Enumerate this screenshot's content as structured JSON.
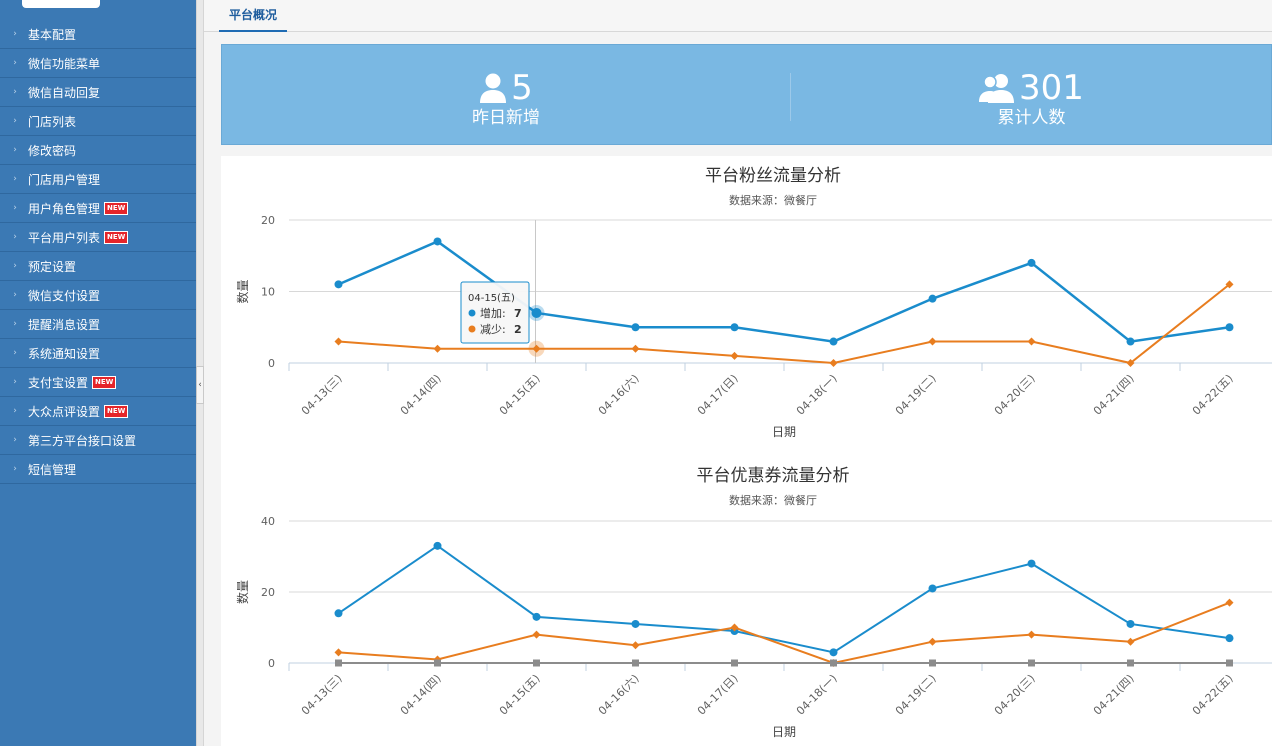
{
  "sidebar": {
    "items": [
      {
        "label": "基本配置",
        "badge": ""
      },
      {
        "label": "微信功能菜单",
        "badge": ""
      },
      {
        "label": "微信自动回复",
        "badge": ""
      },
      {
        "label": "门店列表",
        "badge": ""
      },
      {
        "label": "修改密码",
        "badge": ""
      },
      {
        "label": "门店用户管理",
        "badge": ""
      },
      {
        "label": "用户角色管理",
        "badge": "NEW"
      },
      {
        "label": "平台用户列表",
        "badge": "NEW"
      },
      {
        "label": "预定设置",
        "badge": ""
      },
      {
        "label": "微信支付设置",
        "badge": ""
      },
      {
        "label": "提醒消息设置",
        "badge": ""
      },
      {
        "label": "系统通知设置",
        "badge": ""
      },
      {
        "label": "支付宝设置",
        "badge": "NEW"
      },
      {
        "label": "大众点评设置",
        "badge": "NEW"
      },
      {
        "label": "第三方平台接口设置",
        "badge": ""
      },
      {
        "label": "短信管理",
        "badge": ""
      }
    ]
  },
  "tabs": {
    "overview": "平台概况"
  },
  "stats": {
    "new_yesterday": {
      "value": "5",
      "label": "昨日新增",
      "icon": "user-icon"
    },
    "total": {
      "value": "301",
      "label": "累计人数",
      "icon": "users-icon"
    }
  },
  "colors": {
    "increase": "#1a8ccc",
    "decrease": "#e87d1f",
    "zero": "#8c8c8c",
    "stats_bg": "#7ab8e3",
    "sidebar_bg": "#3b79b4"
  },
  "tooltip": {
    "title": "04-15(五)",
    "rows": [
      {
        "label": "增加",
        "value": "7"
      },
      {
        "label": "减少",
        "value": "2"
      }
    ]
  },
  "chart_data": [
    {
      "type": "line",
      "title": "平台粉丝流量分析",
      "subtitle": "数据来源：微餐厅",
      "xlabel": "日期",
      "ylabel": "数量",
      "ylim": [
        0,
        20
      ],
      "yticks": [
        0,
        10,
        20
      ],
      "categories": [
        "04-13(三)",
        "04-14(四)",
        "04-15(五)",
        "04-16(六)",
        "04-17(日)",
        "04-18(一)",
        "04-19(二)",
        "04-20(三)",
        "04-21(四)",
        "04-22(五)"
      ],
      "series": [
        {
          "name": "增加",
          "values": [
            11,
            17,
            7,
            5,
            5,
            3,
            9,
            14,
            3,
            5
          ]
        },
        {
          "name": "减少",
          "values": [
            3,
            2,
            2,
            2,
            1,
            0,
            3,
            3,
            0,
            11
          ]
        }
      ],
      "grid": true
    },
    {
      "type": "line",
      "title": "平台优惠券流量分析",
      "subtitle": "数据来源：微餐厅",
      "xlabel": "日期",
      "ylabel": "数量",
      "ylim": [
        0,
        40
      ],
      "yticks": [
        0,
        20,
        40
      ],
      "categories": [
        "04-13(三)",
        "04-14(四)",
        "04-15(五)",
        "04-16(六)",
        "04-17(日)",
        "04-18(一)",
        "04-19(二)",
        "04-20(三)",
        "04-21(四)",
        "04-22(五)"
      ],
      "series": [
        {
          "values": [
            14,
            33,
            13,
            11,
            9,
            3,
            21,
            28,
            11,
            7
          ]
        },
        {
          "values": [
            3,
            1,
            8,
            5,
            10,
            0,
            6,
            8,
            6,
            17
          ]
        },
        {
          "values": [
            0,
            0,
            0,
            0,
            0,
            0,
            0,
            0,
            0,
            0
          ]
        }
      ],
      "grid": true
    }
  ]
}
